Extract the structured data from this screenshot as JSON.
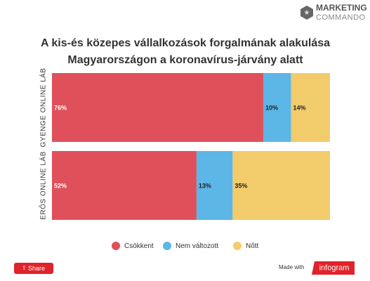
{
  "chart_data": {
    "type": "stacked-bar-horizontal",
    "title": [
      "A kis-és közepes vállalkozások forgalmának alakulása",
      "Magyarországon a koronavírus-járvány alatt"
    ],
    "categories": [
      "GYENGE ONLINE LÁB",
      "ERŐS ONLINE LÁB"
    ],
    "series": [
      {
        "name": "Csökkent",
        "color": "#e0505a",
        "values": [
          76,
          52
        ],
        "value_labels": [
          "76%",
          "52%"
        ]
      },
      {
        "name": "Nem változott",
        "color": "#5cb6e6",
        "values": [
          10,
          13
        ],
        "value_labels": [
          "10%",
          "13%"
        ]
      },
      {
        "name": "Nőtt",
        "color": "#f2cc6b",
        "values": [
          14,
          35
        ],
        "value_labels": [
          "14%",
          "35%"
        ]
      }
    ],
    "xlim": [
      0,
      100
    ]
  },
  "logo": {
    "line1": "MARKETING",
    "line2": "COMMANDO"
  },
  "footer": {
    "share": "Share",
    "made_with": "Made with",
    "brand": "infogram"
  }
}
